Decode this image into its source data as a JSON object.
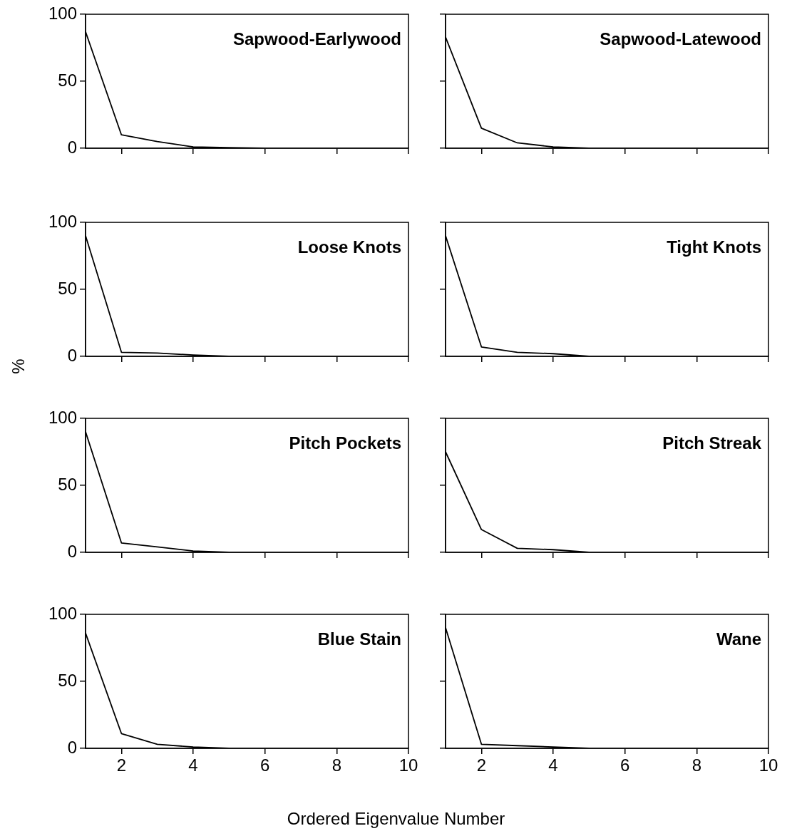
{
  "chart_data": [
    {
      "type": "line",
      "title": "Sapwood-Earlywood",
      "x": [
        1,
        2,
        3,
        4,
        5,
        6,
        7,
        8,
        9,
        10
      ],
      "series": [
        {
          "color": "#000000",
          "values": [
            87,
            10,
            5,
            1,
            0.5,
            0,
            0,
            0,
            0,
            0
          ]
        }
      ],
      "xlim": [
        1,
        10
      ],
      "xticks": [
        {
          "value": 2,
          "label": null
        },
        {
          "value": 4,
          "label": null
        },
        {
          "value": 6,
          "label": null
        },
        {
          "value": 8,
          "label": null
        },
        {
          "value": 10,
          "label": null
        }
      ],
      "ylim": [
        0,
        100
      ],
      "yticks": [
        0,
        50,
        100
      ],
      "tick_labels": "y"
    },
    {
      "type": "line",
      "title": "Sapwood-Latewood",
      "x": [
        1,
        2,
        3,
        4,
        5,
        6,
        7,
        8,
        9,
        10
      ],
      "series": [
        {
          "color": "#000000",
          "values": [
            83,
            15,
            4,
            1,
            0,
            0,
            0,
            0,
            0,
            0
          ]
        }
      ],
      "xlim": [
        1,
        10
      ],
      "xticks": [
        {
          "value": 2,
          "label": null
        },
        {
          "value": 4,
          "label": null
        },
        {
          "value": 6,
          "label": null
        },
        {
          "value": 8,
          "label": null
        },
        {
          "value": 10,
          "label": null
        }
      ],
      "ylim": [
        0,
        100
      ],
      "yticks": [
        {
          "value": 0,
          "label": null
        },
        {
          "value": 50,
          "label": null
        },
        {
          "value": 100,
          "label": null
        }
      ],
      "tick_labels": false
    },
    {
      "type": "line",
      "title": "Loose Knots",
      "ylabel": "%",
      "x": [
        1,
        2,
        3,
        4,
        5,
        6,
        7,
        8,
        9,
        10
      ],
      "series": [
        {
          "color": "#000000",
          "values": [
            90,
            3,
            2.5,
            1,
            0,
            0,
            0,
            0,
            0,
            0
          ]
        }
      ],
      "xlim": [
        1,
        10
      ],
      "xticks": [
        {
          "value": 2,
          "label": null
        },
        {
          "value": 4,
          "label": null
        },
        {
          "value": 6,
          "label": null
        },
        {
          "value": 8,
          "label": null
        },
        {
          "value": 10,
          "label": null
        }
      ],
      "ylim": [
        0,
        100
      ],
      "yticks": [
        0,
        50,
        100
      ],
      "tick_labels": "y"
    },
    {
      "type": "line",
      "title": "Tight Knots",
      "x": [
        1,
        2,
        3,
        4,
        5,
        6,
        7,
        8,
        9,
        10
      ],
      "series": [
        {
          "color": "#000000",
          "values": [
            90,
            7,
            3,
            2,
            0,
            0,
            0,
            0,
            0,
            0
          ]
        }
      ],
      "xlim": [
        1,
        10
      ],
      "xticks": [
        {
          "value": 2,
          "label": null
        },
        {
          "value": 4,
          "label": null
        },
        {
          "value": 6,
          "label": null
        },
        {
          "value": 8,
          "label": null
        },
        {
          "value": 10,
          "label": null
        }
      ],
      "ylim": [
        0,
        100
      ],
      "yticks": [
        {
          "value": 0,
          "label": null
        },
        {
          "value": 50,
          "label": null
        },
        {
          "value": 100,
          "label": null
        }
      ],
      "tick_labels": false
    },
    {
      "type": "line",
      "title": "Pitch Pockets",
      "x": [
        1,
        2,
        3,
        4,
        5,
        6,
        7,
        8,
        9,
        10
      ],
      "series": [
        {
          "color": "#000000",
          "values": [
            90,
            7,
            4,
            1,
            0,
            0,
            0,
            0,
            0,
            0
          ]
        }
      ],
      "xlim": [
        1,
        10
      ],
      "xticks": [
        {
          "value": 2,
          "label": null
        },
        {
          "value": 4,
          "label": null
        },
        {
          "value": 6,
          "label": null
        },
        {
          "value": 8,
          "label": null
        },
        {
          "value": 10,
          "label": null
        }
      ],
      "ylim": [
        0,
        100
      ],
      "yticks": [
        0,
        50,
        100
      ],
      "tick_labels": "y"
    },
    {
      "type": "line",
      "title": "Pitch Streak",
      "x": [
        1,
        2,
        3,
        4,
        5,
        6,
        7,
        8,
        9,
        10
      ],
      "series": [
        {
          "color": "#000000",
          "values": [
            75,
            17,
            3,
            2,
            0,
            0,
            0,
            0,
            0,
            0
          ]
        }
      ],
      "xlim": [
        1,
        10
      ],
      "xticks": [
        {
          "value": 2,
          "label": null
        },
        {
          "value": 4,
          "label": null
        },
        {
          "value": 6,
          "label": null
        },
        {
          "value": 8,
          "label": null
        },
        {
          "value": 10,
          "label": null
        }
      ],
      "ylim": [
        0,
        100
      ],
      "yticks": [
        {
          "value": 0,
          "label": null
        },
        {
          "value": 50,
          "label": null
        },
        {
          "value": 100,
          "label": null
        }
      ],
      "tick_labels": false
    },
    {
      "type": "line",
      "title": "Blue Stain",
      "xlabel": "Ordered Eigenvalue Number",
      "x": [
        1,
        2,
        3,
        4,
        5,
        6,
        7,
        8,
        9,
        10
      ],
      "series": [
        {
          "color": "#000000",
          "values": [
            86,
            11,
            3,
            1,
            0,
            0,
            0,
            0,
            0,
            0
          ]
        }
      ],
      "xlim": [
        1,
        10
      ],
      "xticks": [
        2,
        4,
        6,
        8,
        10
      ],
      "ylim": [
        0,
        100
      ],
      "yticks": [
        0,
        50,
        100
      ]
    },
    {
      "type": "line",
      "title": "Wane",
      "x": [
        1,
        2,
        3,
        4,
        5,
        6,
        7,
        8,
        9,
        10
      ],
      "series": [
        {
          "color": "#000000",
          "values": [
            90,
            3,
            2,
            1,
            0,
            0,
            0,
            0,
            0,
            0
          ]
        }
      ],
      "xlim": [
        1,
        10
      ],
      "xticks": [
        2,
        4,
        6,
        8,
        10
      ],
      "ylim": [
        0,
        100
      ],
      "yticks": [
        {
          "value": 0,
          "label": null
        },
        {
          "value": 50,
          "label": null
        },
        {
          "value": 100,
          "label": null
        }
      ],
      "tick_labels": "x"
    }
  ]
}
